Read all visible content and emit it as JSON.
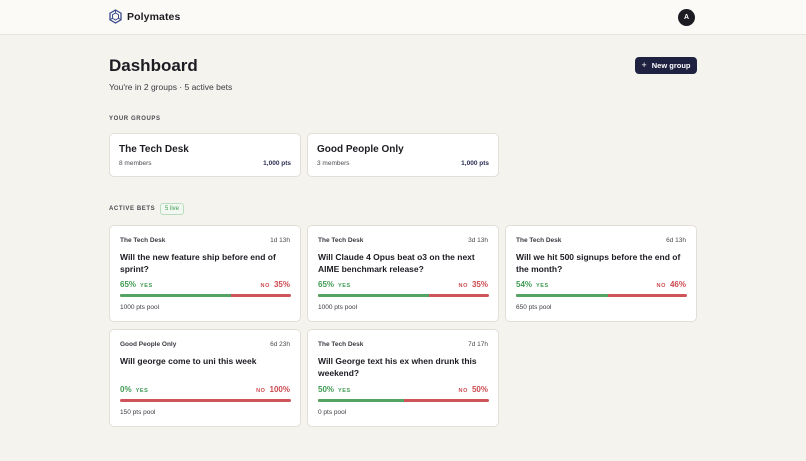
{
  "app": {
    "brand": "Polymates",
    "logo_icon": "polymates-hex-logo-icon",
    "avatar_initial": "A"
  },
  "header": {
    "title": "Dashboard",
    "subtitle": "You're in 2 groups · 5 active bets",
    "new_group_label": "New group",
    "new_group_icon": "plus-icon"
  },
  "groups_section": {
    "label": "YOUR GROUPS"
  },
  "groups": [
    {
      "name": "The Tech Desk",
      "members": "8 members",
      "points": "1,000 pts"
    },
    {
      "name": "Good People Only",
      "members": "3 members",
      "points": "1,000 pts"
    }
  ],
  "bets_section": {
    "label": "ACTIVE BETS",
    "live_badge": "5 live"
  },
  "bets": [
    {
      "group": "The Tech Desk",
      "time_left": "1d 13h",
      "question": "Will the new feature ship before end of sprint?",
      "yes_pct": "65%",
      "yes_label": "YES",
      "no_label": "NO",
      "no_pct": "35%",
      "yes_fraction": 0.65,
      "pool": "1000 pts pool"
    },
    {
      "group": "The Tech Desk",
      "time_left": "3d 13h",
      "question": "Will Claude 4 Opus beat o3 on the next AIME benchmark release?",
      "yes_pct": "65%",
      "yes_label": "YES",
      "no_label": "NO",
      "no_pct": "35%",
      "yes_fraction": 0.65,
      "pool": "1000 pts pool"
    },
    {
      "group": "The Tech Desk",
      "time_left": "6d 13h",
      "question": "Will we hit 500 signups before the end of the month?",
      "yes_pct": "54%",
      "yes_label": "YES",
      "no_label": "NO",
      "no_pct": "46%",
      "yes_fraction": 0.54,
      "pool": "650 pts pool"
    },
    {
      "group": "Good People Only",
      "time_left": "6d 23h",
      "question": "Will george come to uni this week",
      "yes_pct": "0%",
      "yes_label": "YES",
      "no_label": "NO",
      "no_pct": "100%",
      "yes_fraction": 0.0,
      "pool": "150 pts pool"
    },
    {
      "group": "The Tech Desk",
      "time_left": "7d 17h",
      "question": "Will George text his ex when drunk this weekend?",
      "yes_pct": "50%",
      "yes_label": "YES",
      "no_label": "NO",
      "no_pct": "50%",
      "yes_fraction": 0.5,
      "pool": "0 pts pool"
    }
  ],
  "colors": {
    "background": "#f5f3ee",
    "primary_button": "#1e2140",
    "yes": "#3f9b52",
    "no": "#cc4a4f",
    "logo": "#3b4c8a"
  }
}
